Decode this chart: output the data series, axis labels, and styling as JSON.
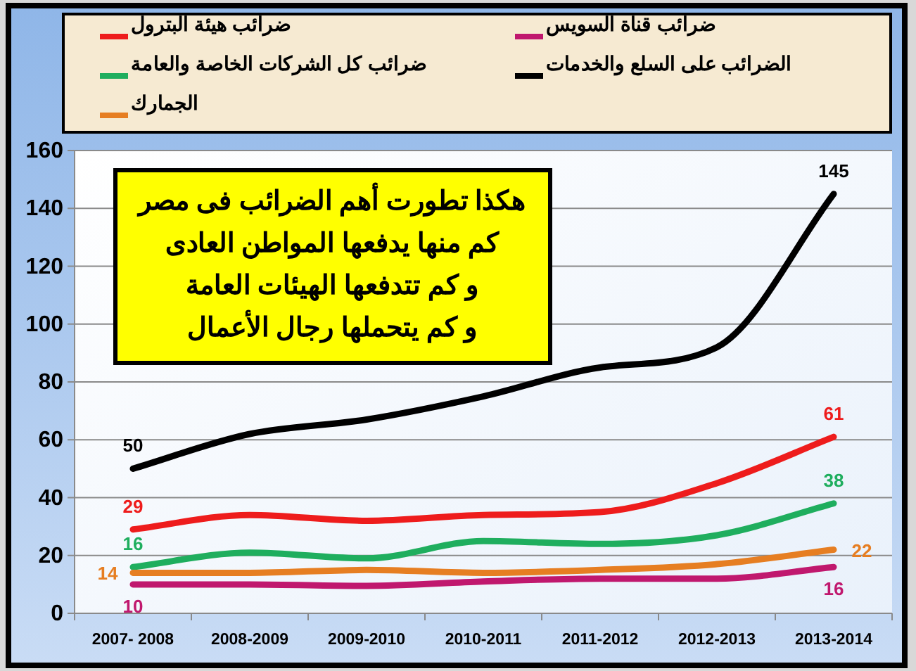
{
  "chart_data": {
    "type": "line",
    "categories": [
      "2007- 2008",
      "2008-2009",
      "2009-2010",
      "2010-2011",
      "2011-2012",
      "2012-2013",
      "2013-2014"
    ],
    "series": [
      {
        "name": "ضرائب هيئة البترول",
        "color": "#ee1c1c",
        "values": [
          29,
          34,
          32,
          34,
          35,
          45,
          61
        ],
        "value_labels": [
          "29",
          null,
          null,
          null,
          null,
          null,
          "61"
        ]
      },
      {
        "name": "ضرائب قناة السويس",
        "color": "#c0186e",
        "values": [
          10,
          10,
          9.5,
          11,
          12,
          12,
          16
        ],
        "value_labels": [
          "10",
          null,
          null,
          null,
          null,
          null,
          "16"
        ]
      },
      {
        "name": "ضرائب كل الشركات الخاصة والعامة",
        "color": "#1fae5e",
        "values": [
          16,
          21,
          19,
          25,
          24,
          27,
          38
        ],
        "value_labels": [
          "16",
          null,
          null,
          null,
          null,
          null,
          "38"
        ]
      },
      {
        "name": "الضرائب على السلع والخدمات",
        "color": "#000000",
        "values": [
          50,
          62,
          67,
          75,
          85,
          92,
          145
        ],
        "value_labels": [
          "50",
          null,
          null,
          null,
          null,
          null,
          "145"
        ]
      },
      {
        "name": "الجمارك",
        "color": "#e67e22",
        "values": [
          14,
          14,
          15,
          14,
          15,
          17,
          22
        ],
        "value_labels": [
          "14",
          null,
          null,
          null,
          null,
          null,
          "22"
        ]
      }
    ],
    "ylim": [
      0,
      160
    ],
    "yticks": [
      0,
      20,
      40,
      60,
      80,
      100,
      120,
      140,
      160
    ],
    "grid": "y",
    "legend": "top",
    "annotations": [
      "هكذا تطورت أهم الضرائب فى مصر",
      "كم منها يدفعها المواطن العادى",
      "و كم تتدفعها الهيئات العامة",
      "و كم يتحملها رجال الأعمال"
    ]
  }
}
